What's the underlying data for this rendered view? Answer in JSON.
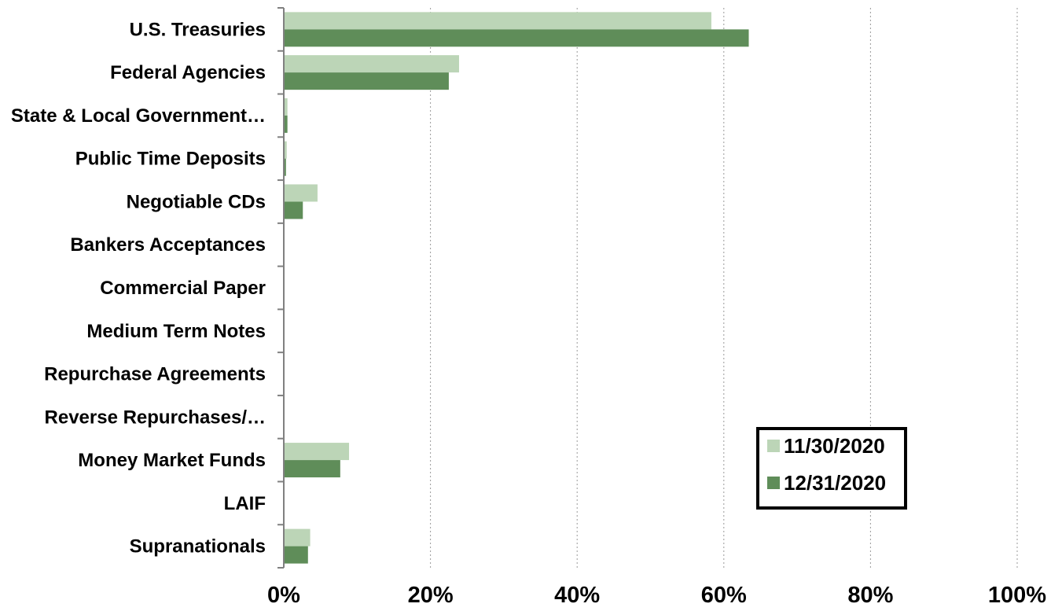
{
  "chart_data": {
    "type": "bar",
    "orientation": "horizontal",
    "categories": [
      "U.S. Treasuries",
      "Federal Agencies",
      "State & Local Government…",
      "Public Time Deposits",
      "Negotiable CDs",
      "Bankers Acceptances",
      "Commercial Paper",
      "Medium Term Notes",
      "Repurchase Agreements",
      "Reverse Repurchases/…",
      "Money Market Funds",
      "LAIF",
      "Supranationals"
    ],
    "series": [
      {
        "name": "11/30/2020",
        "color": "#bcd5b7",
        "values": [
          58.3,
          23.9,
          0.5,
          0.4,
          4.6,
          0,
          0,
          0.1,
          0,
          0,
          8.9,
          0,
          3.6
        ]
      },
      {
        "name": "12/31/2020",
        "color": "#5f8d59",
        "values": [
          63.4,
          22.5,
          0.5,
          0.3,
          2.6,
          0,
          0,
          0.1,
          0,
          0,
          7.7,
          0,
          3.3
        ]
      }
    ],
    "xlim": [
      0,
      100
    ],
    "xticks": [
      0,
      20,
      40,
      60,
      80,
      100
    ],
    "xtick_labels": [
      "0%",
      "20%",
      "40%",
      "60%",
      "80%",
      "100%"
    ],
    "grid": "vertical dotted",
    "legend_position": "lower-right"
  }
}
